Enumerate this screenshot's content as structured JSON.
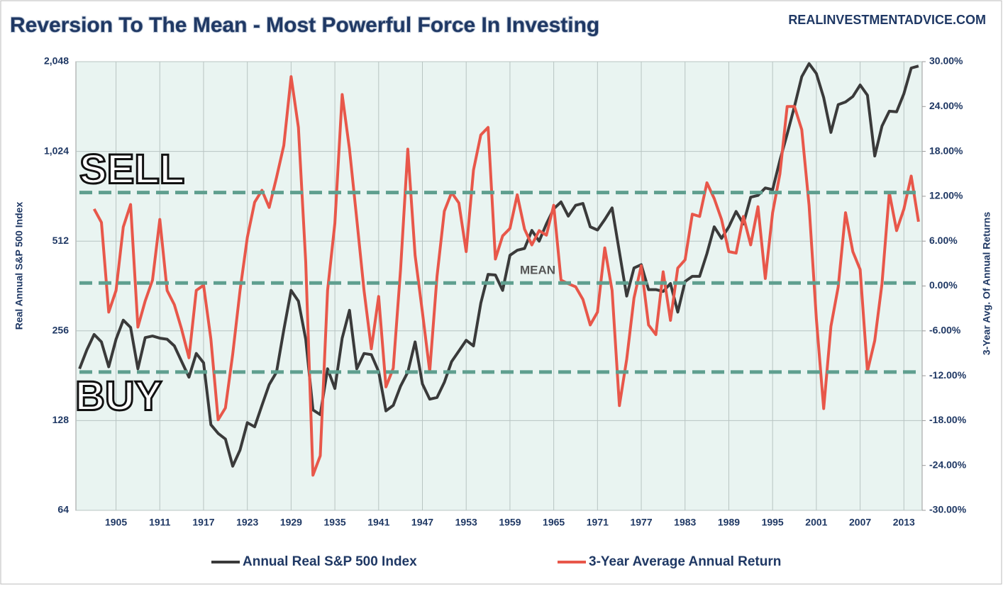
{
  "chart_data": {
    "type": "line",
    "title": "Reversion To The Mean - Most Powerful Force In Investing",
    "source": "REALINVESTMENTADVICE.COM",
    "y_label": "Real Annual S&P 500 Index",
    "y2_label": "3-Year Avg. Of Annual Returns",
    "annotations": [
      "SELL",
      "MEAN",
      "BUY"
    ],
    "x": [
      1900,
      1901,
      1902,
      1903,
      1904,
      1905,
      1906,
      1907,
      1908,
      1909,
      1910,
      1911,
      1912,
      1913,
      1914,
      1915,
      1916,
      1917,
      1918,
      1919,
      1920,
      1921,
      1922,
      1923,
      1924,
      1925,
      1926,
      1927,
      1928,
      1929,
      1930,
      1931,
      1932,
      1933,
      1934,
      1935,
      1936,
      1937,
      1938,
      1939,
      1940,
      1941,
      1942,
      1943,
      1944,
      1945,
      1946,
      1947,
      1948,
      1949,
      1950,
      1951,
      1952,
      1953,
      1954,
      1955,
      1956,
      1957,
      1958,
      1959,
      1960,
      1961,
      1962,
      1963,
      1964,
      1965,
      1966,
      1967,
      1968,
      1969,
      1970,
      1971,
      1972,
      1973,
      1974,
      1975,
      1976,
      1977,
      1978,
      1979,
      1980,
      1981,
      1982,
      1983,
      1984,
      1985,
      1986,
      1987,
      1988,
      1989,
      1990,
      1991,
      1992,
      1993,
      1994,
      1995,
      1996,
      1997,
      1998,
      1999,
      2000,
      2001,
      2002,
      2003,
      2004,
      2005,
      2006,
      2007,
      2008,
      2009,
      2010,
      2011,
      2012,
      2013,
      2014,
      2015
    ],
    "xlim": [
      1899.5,
      2015.5
    ],
    "xticks": [
      1905,
      1911,
      1917,
      1923,
      1929,
      1935,
      1941,
      1947,
      1953,
      1959,
      1965,
      1971,
      1977,
      1983,
      1989,
      1995,
      2001,
      2007,
      2013
    ],
    "y_scale": "log2",
    "ylim": [
      64,
      2048
    ],
    "yticks": [
      64,
      128,
      256,
      512,
      {
        "value": 1024,
        "label": "1,024"
      },
      {
        "value": 2048,
        "label": "2,048"
      }
    ],
    "y2lim": [
      -30,
      30
    ],
    "y2ticks": [
      {
        "value": -30,
        "label": "-30.00%"
      },
      {
        "value": -24,
        "label": "-24.00%"
      },
      {
        "value": -18,
        "label": "-18.00%"
      },
      {
        "value": -12,
        "label": "-12.00%"
      },
      {
        "value": -6,
        "label": "-6.00%"
      },
      {
        "value": 0,
        "label": "0.00%"
      },
      {
        "value": 6,
        "label": "6.00%"
      },
      {
        "value": 12,
        "label": "12.00%"
      },
      {
        "value": 18,
        "label": "18.00%"
      },
      {
        "value": 24,
        "label": "24.00%"
      },
      {
        "value": 30,
        "label": "30.00%"
      }
    ],
    "grid": true,
    "reference_lines": [
      12.5,
      0.4,
      -11.5
    ],
    "reference_color": "#5f9f8f",
    "series": [
      {
        "name": "Annual Real S&P 500 Index",
        "color": "#3a3a3a",
        "values": [
          191,
          221,
          249,
          235,
          194,
          240,
          278,
          263,
          191,
          243,
          246,
          242,
          240,
          228,
          202,
          179,
          215,
          200,
          124,
          116,
          111,
          90,
          102,
          126,
          122,
          144,
          169,
          186,
          258,
          350,
          322,
          240,
          139,
          134,
          191,
          164,
          242,
          300,
          191,
          215,
          213,
          187,
          138,
          144,
          167,
          186,
          235,
          170,
          151,
          153,
          172,
          202,
          219,
          238,
          228,
          317,
          396,
          394,
          350,
          459,
          477,
          484,
          556,
          512,
          585,
          657,
          693,
          621,
          675,
          685,
          572,
          558,
          605,
          662,
          471,
          335,
          416,
          427,
          352,
          352,
          347,
          369,
          296,
          375,
          390,
          390,
          465,
          572,
          523,
          572,
          644,
          585,
          719,
          729,
          772,
          762,
          956,
          1170,
          1449,
          1824,
          2017,
          1868,
          1552,
          1186,
          1470,
          1500,
          1564,
          1710,
          1580,
          988,
          1245,
          1397,
          1390,
          1600,
          1950,
          1980
        ]
      },
      {
        "name": "3-Year Average Annual Return",
        "color": "#e8574a",
        "axis": "y2",
        "values": [
          null,
          null,
          10.3,
          8.5,
          -3.5,
          -0.6,
          7.9,
          10.9,
          -5.5,
          -2.0,
          0.8,
          8.9,
          -0.6,
          -2.5,
          -5.8,
          -9.6,
          -0.6,
          0.1,
          -7.1,
          -17.9,
          -16.3,
          -9.1,
          -0.6,
          6.5,
          11.2,
          12.8,
          10.5,
          14.5,
          18.8,
          28.0,
          21.2,
          3.2,
          -25.3,
          -22.7,
          -0.6,
          8.4,
          25.6,
          18.3,
          8.9,
          -0.6,
          -8.4,
          -1.4,
          -13.5,
          -11.0,
          2.2,
          18.3,
          4.1,
          -3.5,
          -11.4,
          1.3,
          10.0,
          12.5,
          11.1,
          4.6,
          15.5,
          20.2,
          21.2,
          3.6,
          6.7,
          7.7,
          12.2,
          7.6,
          5.5,
          7.4,
          6.8,
          10.8,
          0.8,
          0.3,
          -0.1,
          -1.8,
          -5.2,
          -3.5,
          5.1,
          -0.6,
          -16.0,
          -9.8,
          -1.6,
          2.7,
          -5.2,
          -6.5,
          1.9,
          -4.6,
          2.4,
          3.5,
          9.6,
          9.3,
          13.8,
          11.7,
          8.9,
          4.6,
          4.4,
          9.3,
          5.5,
          10.6,
          1.0,
          9.8,
          15.0,
          24.0,
          24.0,
          20.9,
          10.8,
          -4.4,
          -16.4,
          -5.4,
          -0.1,
          9.8,
          4.6,
          2.2,
          -11.4,
          -7.3,
          0.3,
          12.5,
          7.4,
          10.3,
          14.7,
          8.6
        ]
      }
    ]
  }
}
